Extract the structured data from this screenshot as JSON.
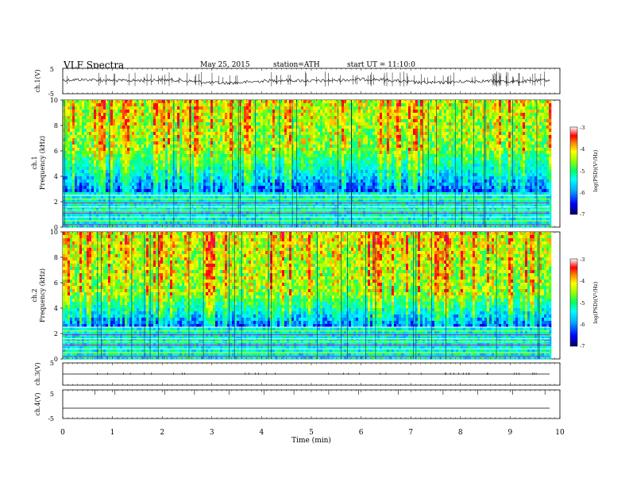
{
  "header": {
    "title": "VLF  Spectra",
    "date": "May 25, 2015",
    "station": "station=ATH",
    "start": "start  UT  =    11:10:0"
  },
  "chart_data": [
    {
      "type": "line",
      "ylabel": "ch.1(V)",
      "ylim": [
        -5,
        5
      ],
      "yticks": [
        "5",
        "-5"
      ],
      "series": [
        {
          "description_x_range_min": [
            0,
            9.8
          ],
          "mean_level": 0,
          "amplitude_approx": 1.0
        }
      ]
    },
    {
      "type": "heatmap",
      "ylabel_lines": [
        "ch.1",
        "Frequency  (kHz)"
      ],
      "ylim": [
        0,
        10
      ],
      "yticks": [
        "0",
        "2",
        "4",
        "6",
        "8",
        "10"
      ],
      "colorbar": {
        "label": "log(PSD)(V²/Hz)",
        "range": [
          -7,
          -3
        ],
        "ticks": [
          "-3",
          "-4",
          "-5",
          "-6",
          "-7"
        ]
      },
      "bands_khz": {
        "low_lines": [
          0,
          2.8
        ],
        "quiet_blue": [
          2.8,
          6
        ],
        "active_upper": [
          6,
          10
        ]
      }
    },
    {
      "type": "heatmap",
      "ylabel_lines": [
        "ch.2",
        "Frequency  (kHz)"
      ],
      "ylim": [
        0,
        10
      ],
      "yticks": [
        "0",
        "2",
        "4",
        "6",
        "8",
        "10"
      ],
      "colorbar": {
        "label": "log(PSD)(V²/Hz)",
        "range": [
          -7,
          -3
        ],
        "ticks": [
          "-3",
          "-4",
          "-5",
          "-6",
          "-7"
        ]
      },
      "bands_khz": {
        "low_lines": [
          0,
          2.5
        ],
        "quiet_blue": [
          2.5,
          5
        ],
        "active_upper": [
          5,
          10
        ]
      }
    },
    {
      "type": "line",
      "ylabel": "ch.3(V)",
      "ylim": [
        -5,
        5
      ],
      "yticks": [
        "5"
      ],
      "series": [
        {
          "mean_level": 0
        }
      ]
    },
    {
      "type": "line",
      "ylabel": "ch.4(V)",
      "ylim": [
        -5,
        5
      ],
      "yticks": [
        "5",
        "-5"
      ],
      "series": [
        {
          "mean_level": 0
        }
      ]
    }
  ],
  "xaxis": {
    "label": "Time  (min)",
    "xlim": [
      0,
      10
    ],
    "ticks": [
      "0",
      "1",
      "2",
      "3",
      "4",
      "5",
      "6",
      "7",
      "8",
      "9",
      "10"
    ],
    "data_end_min": 9.8
  },
  "colors": {
    "colormap": [
      "#000080",
      "#0000ff",
      "#00a0ff",
      "#00ffff",
      "#00ff80",
      "#80ff00",
      "#ffff00",
      "#ff8000",
      "#ff0000",
      "#ff0080",
      "#ffffff"
    ]
  }
}
